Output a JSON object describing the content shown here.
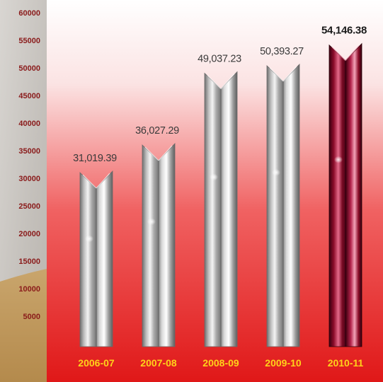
{
  "chart_data": {
    "type": "bar",
    "title": "",
    "xlabel": "",
    "ylabel": "",
    "categories": [
      "2006-07",
      "2007-08",
      "2008-09",
      "2009-10",
      "2010-11"
    ],
    "values": [
      31019.39,
      36027.29,
      49037.23,
      50393.27,
      54146.38
    ],
    "value_labels": [
      "31,019.39",
      "36,027.29",
      "49,037.23",
      "50,393.27",
      "54,146.38"
    ],
    "y_ticks": [
      "5000",
      "10000",
      "15000",
      "20000",
      "25000",
      "30000",
      "35000",
      "40000",
      "45000",
      "50000",
      "55000",
      "60000"
    ],
    "ylim": [
      0,
      60000
    ],
    "grid": false,
    "legend": "none",
    "highlight_index": 4,
    "colors": {
      "background_top": "#ffffff",
      "background_bottom": "#e01a1a",
      "left_panel": "#cfcac4",
      "sand": "#c8a46a",
      "axis_text": "#8a1a1a",
      "category_text": "#ffd21a",
      "value_text": "#3a3a3a",
      "bar_silver": "#c9c9c9",
      "bar_highlight": "#9a0f2e"
    }
  }
}
